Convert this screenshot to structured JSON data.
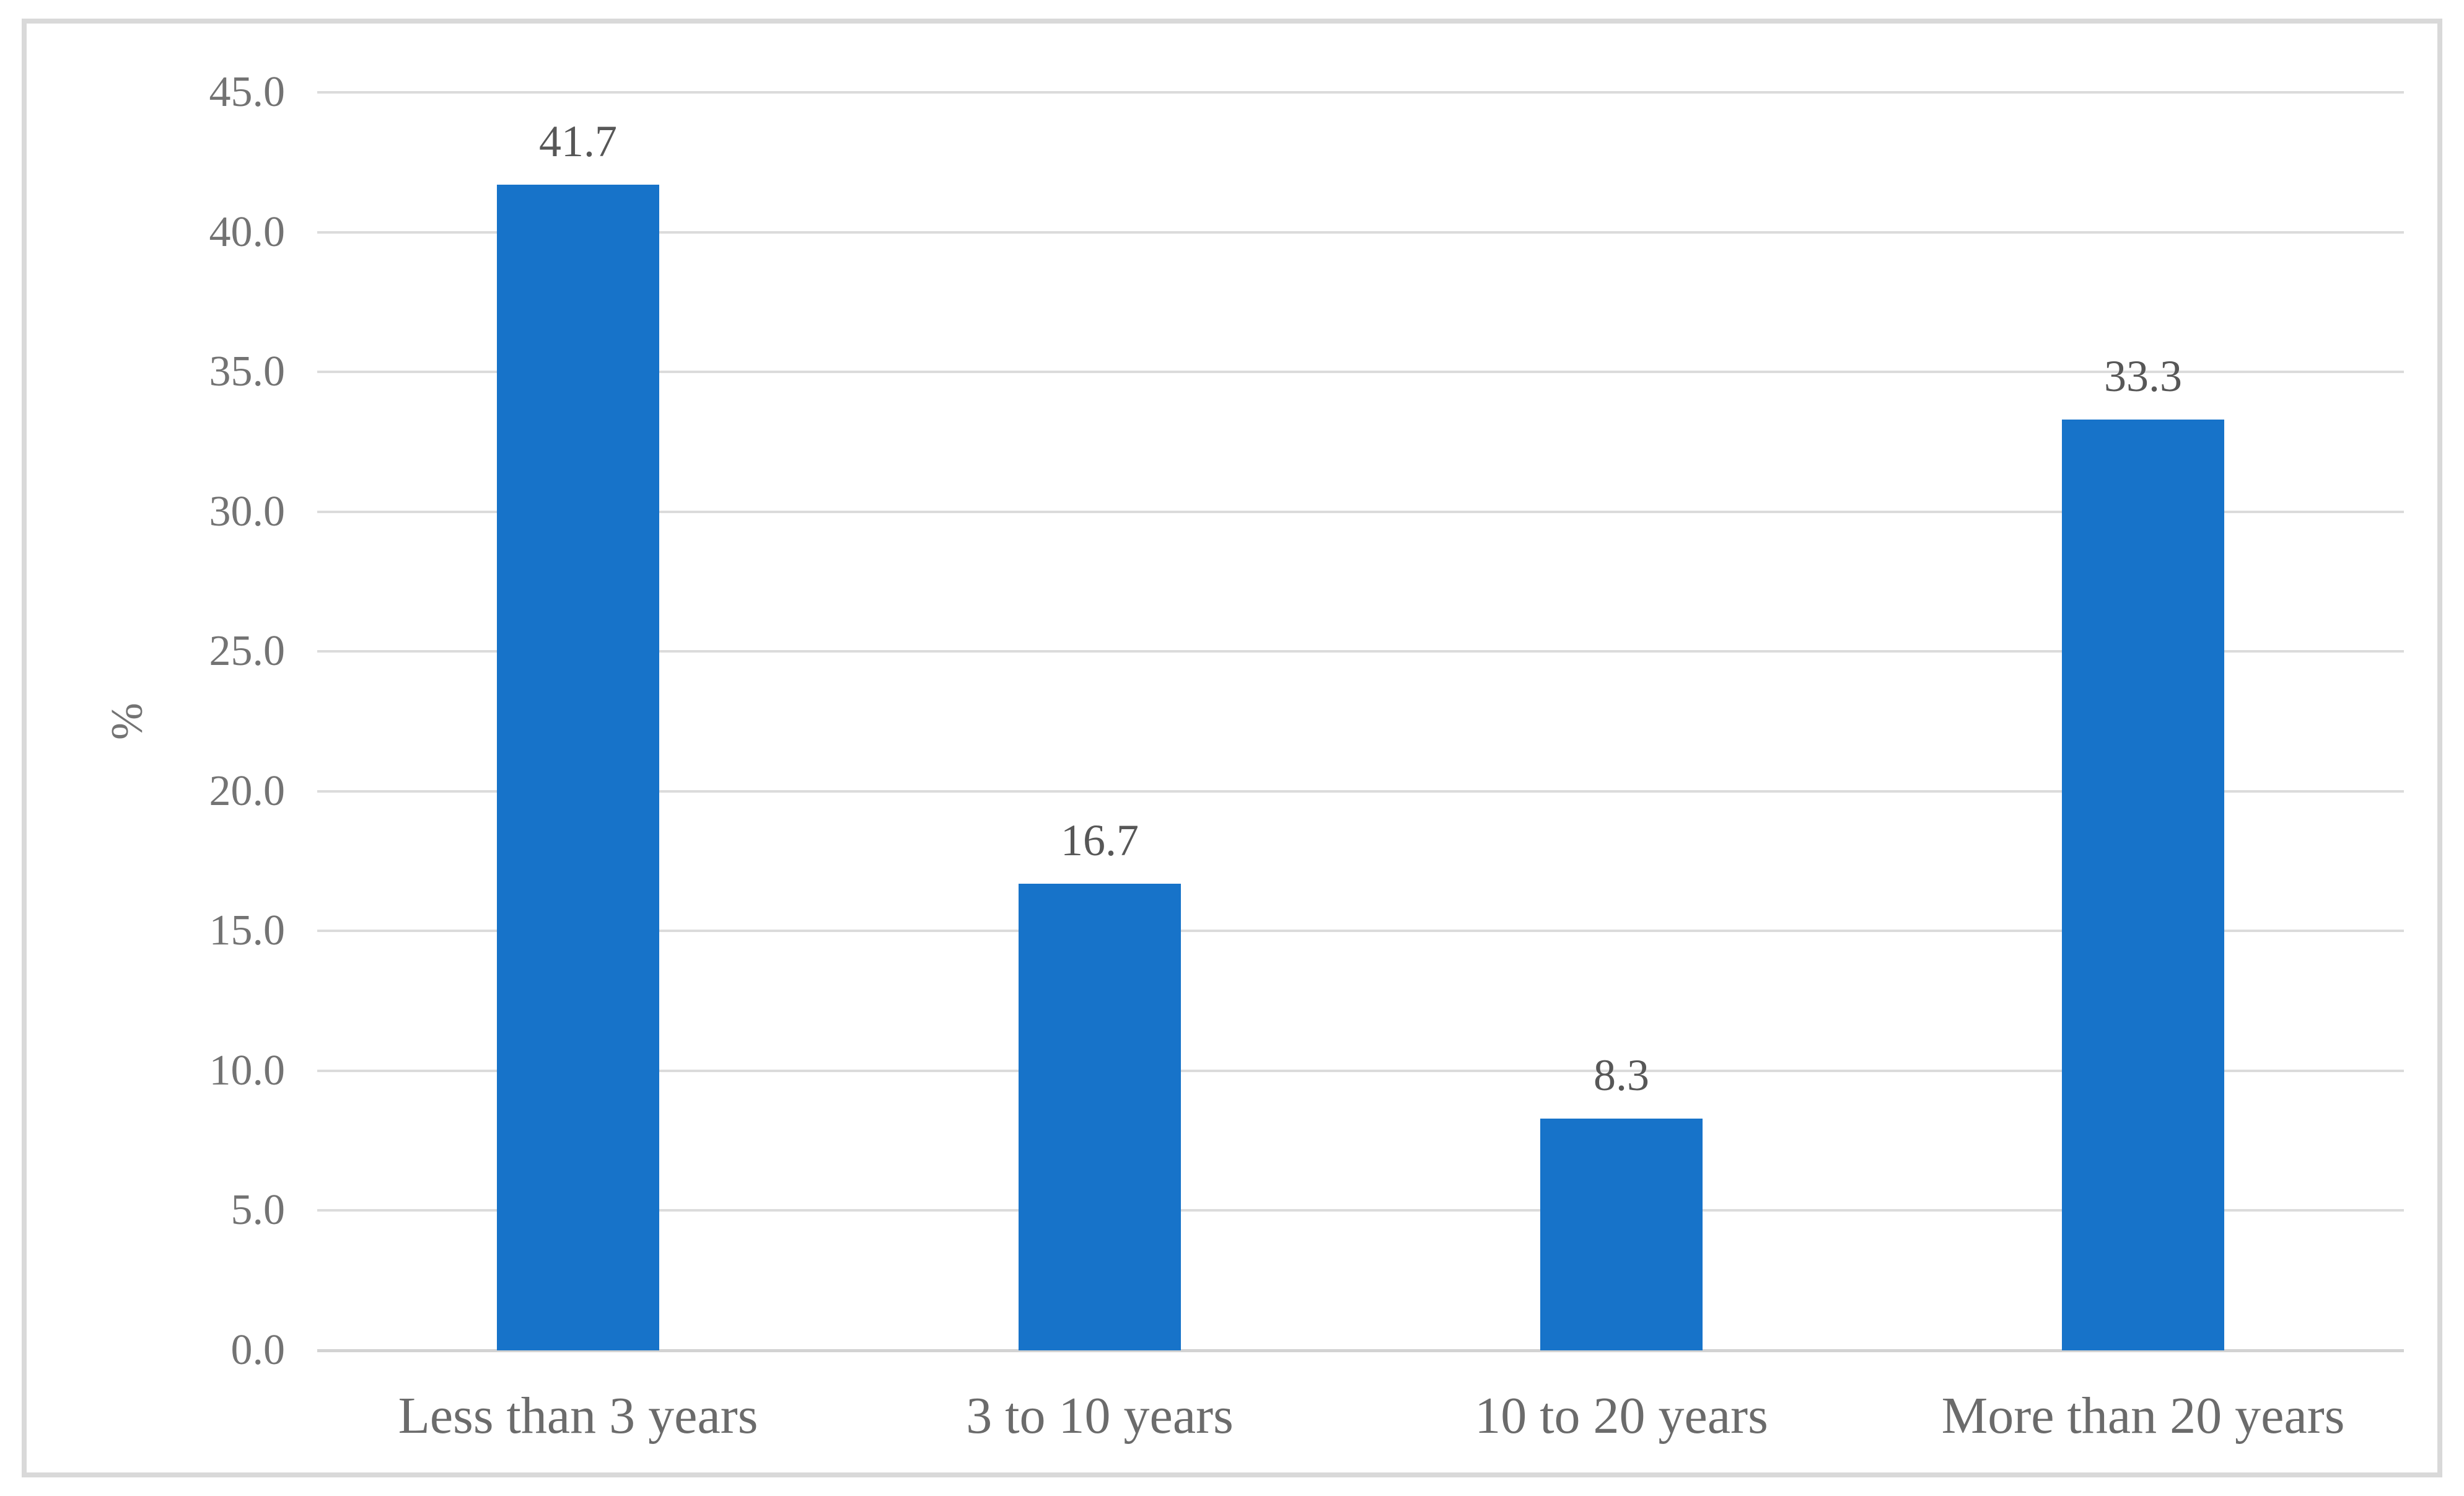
{
  "chart_data": {
    "type": "bar",
    "title": "",
    "xlabel": "",
    "ylabel": "%",
    "categories": [
      "Less than 3 years",
      "3 to 10 years",
      "10 to 20 years",
      "More than 20 years"
    ],
    "values": [
      41.7,
      16.7,
      8.3,
      33.3
    ],
    "data_labels": [
      "41.7",
      "16.7",
      "8.3",
      "33.3"
    ],
    "ylim": [
      0,
      45
    ],
    "ytick_step": 5,
    "ytick_labels": [
      "0.0",
      "5.0",
      "10.0",
      "15.0",
      "20.0",
      "25.0",
      "30.0",
      "35.0",
      "40.0",
      "45.0"
    ],
    "grid": "horizontal",
    "legend": "none",
    "colors": {
      "bar": "#1773C9",
      "gridline": "#DBDBDB",
      "axis_line": "#D3D3D3",
      "tick_label": "#737373",
      "data_label": "#575757",
      "category_label": "#6B6B6B",
      "frame_border": "#D9D9D9",
      "background": "#FFFFFF"
    }
  }
}
